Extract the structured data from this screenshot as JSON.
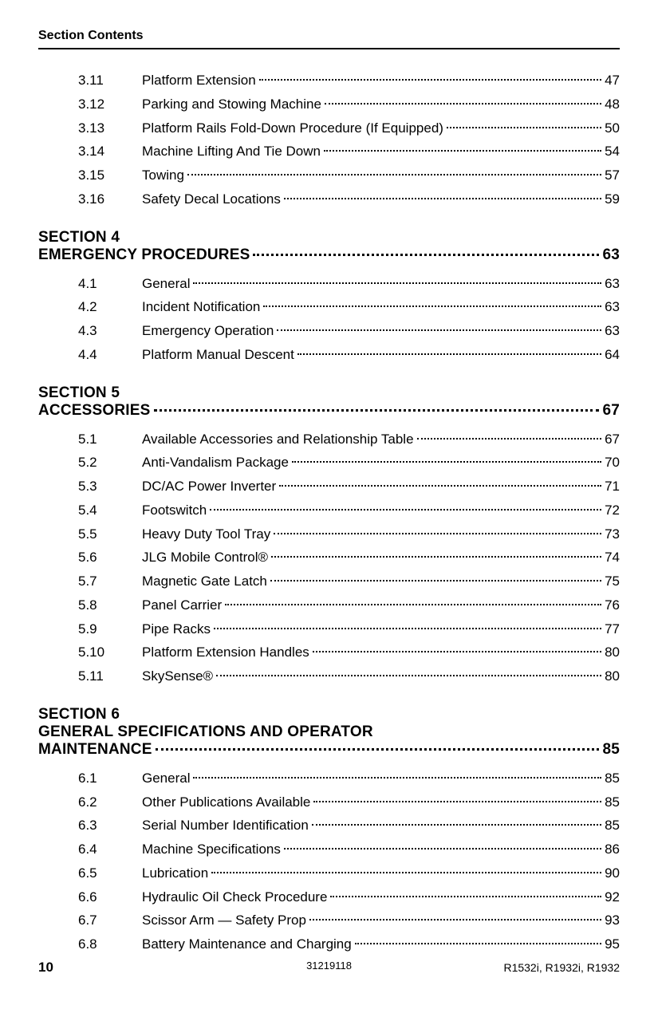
{
  "header": {
    "title": "Section Contents"
  },
  "groups": [
    {
      "section_label": null,
      "section_title": null,
      "section_page": null,
      "items": [
        {
          "num": "3.11",
          "title": "Platform Extension",
          "page": "47"
        },
        {
          "num": "3.12",
          "title": "Parking and Stowing Machine",
          "page": "48"
        },
        {
          "num": "3.13",
          "title": "Platform Rails Fold-Down Procedure (If Equipped)",
          "page": "50"
        },
        {
          "num": "3.14",
          "title": "Machine Lifting And Tie Down",
          "page": "54"
        },
        {
          "num": "3.15",
          "title": "Towing",
          "page": "57"
        },
        {
          "num": "3.16",
          "title": "Safety Decal Locations",
          "page": "59"
        }
      ]
    },
    {
      "section_label": "SECTION 4",
      "section_title": "EMERGENCY PROCEDURES",
      "section_page": "63",
      "items": [
        {
          "num": "4.1",
          "title": "General",
          "page": "63"
        },
        {
          "num": "4.2",
          "title": "Incident Notification",
          "page": "63"
        },
        {
          "num": "4.3",
          "title": "Emergency Operation",
          "page": "63"
        },
        {
          "num": "4.4",
          "title": "Platform Manual Descent",
          "page": "64"
        }
      ]
    },
    {
      "section_label": "SECTION 5",
      "section_title": "ACCESSORIES",
      "section_page": "67",
      "items": [
        {
          "num": "5.1",
          "title": "Available Accessories and Relationship Table",
          "page": "67"
        },
        {
          "num": "5.2",
          "title": "Anti-Vandalism Package",
          "page": "70"
        },
        {
          "num": "5.3",
          "title": "DC/AC Power Inverter",
          "page": "71"
        },
        {
          "num": "5.4",
          "title": "Footswitch",
          "page": "72"
        },
        {
          "num": "5.5",
          "title": "Heavy Duty Tool Tray",
          "page": "73"
        },
        {
          "num": "5.6",
          "title": "JLG Mobile Control®",
          "page": "74"
        },
        {
          "num": "5.7",
          "title": "Magnetic Gate Latch",
          "page": "75"
        },
        {
          "num": "5.8",
          "title": "Panel Carrier",
          "page": "76"
        },
        {
          "num": "5.9",
          "title": "Pipe Racks",
          "page": "77"
        },
        {
          "num": "5.10",
          "title": "Platform Extension Handles",
          "page": "80"
        },
        {
          "num": "5.11",
          "title": "SkySense®",
          "page": "80"
        }
      ]
    },
    {
      "section_label": "SECTION 6",
      "section_title": "GENERAL SPECIFICATIONS AND OPERATOR MAINTENANCE",
      "section_page": "85",
      "items": [
        {
          "num": "6.1",
          "title": "General",
          "page": "85"
        },
        {
          "num": "6.2",
          "title": "Other Publications Available",
          "page": "85"
        },
        {
          "num": "6.3",
          "title": "Serial Number Identification",
          "page": "85"
        },
        {
          "num": "6.4",
          "title": "Machine Specifications",
          "page": "86"
        },
        {
          "num": "6.5",
          "title": "Lubrication",
          "page": "90"
        },
        {
          "num": "6.6",
          "title": "Hydraulic Oil Check Procedure",
          "page": "92"
        },
        {
          "num": "6.7",
          "title": "Scissor Arm — Safety Prop",
          "page": "93"
        },
        {
          "num": "6.8",
          "title": "Battery Maintenance and Charging",
          "page": "95"
        }
      ]
    }
  ],
  "footer": {
    "page_number": "10",
    "doc_number": "31219118",
    "models": "R1532i, R1932i, R1932"
  }
}
